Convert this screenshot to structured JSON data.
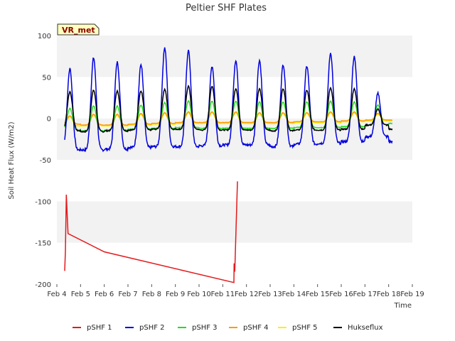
{
  "chart_data": {
    "type": "line",
    "title": "Peltier SHF Plates",
    "xlabel": "Time",
    "ylabel": "Soil Heat Flux (W/m2)",
    "ylim": [
      -200,
      100
    ],
    "xlim": [
      4.0,
      19.0
    ],
    "x_tick_labels": [
      "Feb 4",
      "Feb 5",
      "Feb 6",
      "Feb 7",
      "Feb 8",
      "Feb 9",
      "Feb 10",
      "Feb 11",
      "Feb 12",
      "Feb 13",
      "Feb 14",
      "Feb 15",
      "Feb 16",
      "Feb 17",
      "Feb 18",
      "Feb 19"
    ],
    "y_ticks": [
      -200,
      -150,
      -100,
      -50,
      0,
      50,
      100
    ],
    "grid": "horizontal bands",
    "legend_position": "bottom",
    "site_tag": "VR_met",
    "diurnal_peak_day_fraction": 0.55,
    "series": [
      {
        "name": "pSHF 1",
        "color": "#e31a1c",
        "x": [
          4.33,
          4.36,
          4.4,
          4.44,
          4.47,
          6.0,
          11.47,
          11.48,
          11.5,
          11.51,
          11.62
        ],
        "y": [
          -184,
          -160,
          -92,
          -120,
          -139,
          -161,
          -198,
          -175,
          -185,
          -183,
          -76
        ]
      },
      {
        "name": "pSHF 2",
        "color": "#0000dd",
        "baseline": -32,
        "amplitude_note": "daily peaks",
        "days": [
          4.33,
          5,
          6,
          7,
          8,
          9,
          10,
          11,
          12,
          13,
          14,
          15,
          16,
          17,
          18
        ],
        "peaks": [
          60,
          73,
          68,
          65,
          85,
          82,
          63,
          70,
          70,
          65,
          63,
          79,
          75,
          30,
          -28
        ],
        "troughs": [
          -38,
          -38,
          -37,
          -35,
          -34,
          -34,
          -33,
          -32,
          -32,
          -34,
          -31,
          -30,
          -28,
          -22,
          -28
        ]
      },
      {
        "name": "pSHF 3",
        "color": "#22dd22",
        "days": [
          4.33,
          5,
          6,
          7,
          8,
          9,
          10,
          11,
          12,
          13,
          14,
          15,
          16,
          17,
          18
        ],
        "peaks": [
          12,
          15,
          15,
          16,
          19,
          21,
          21,
          21,
          20,
          20,
          20,
          21,
          20,
          16,
          5
        ],
        "troughs": [
          -14,
          -15,
          -14,
          -13,
          -12,
          -11,
          -12,
          -12,
          -12,
          -12,
          -11,
          -11,
          -10,
          -8,
          -6
        ]
      },
      {
        "name": "pSHF 4",
        "color": "#ff9900",
        "days": [
          4.33,
          5,
          6,
          7,
          8,
          9,
          10,
          11,
          12,
          13,
          14,
          15,
          16,
          17,
          18
        ],
        "peaks": [
          3,
          5,
          5,
          6,
          7,
          8,
          8,
          8,
          7,
          7,
          7,
          8,
          8,
          6,
          2
        ],
        "troughs": [
          -7,
          -8,
          -8,
          -7,
          -6,
          -5,
          -5,
          -5,
          -5,
          -5,
          -4,
          -4,
          -3,
          -2,
          -2
        ]
      },
      {
        "name": "pSHF 5",
        "color": "#ffee00",
        "days": [
          4.33,
          5,
          6,
          7,
          8,
          9,
          10,
          11,
          12,
          13,
          14,
          15,
          16,
          17,
          18
        ],
        "peaks": [
          2,
          4,
          4,
          5,
          6,
          7,
          7,
          7,
          6,
          6,
          6,
          7,
          7,
          5,
          1
        ],
        "troughs": [
          -9,
          -9,
          -9,
          -8,
          -7,
          -6,
          -6,
          -6,
          -6,
          -6,
          -5,
          -5,
          -4,
          -3,
          -3
        ]
      },
      {
        "name": "Hukseflux",
        "color": "#000000",
        "days": [
          4.33,
          5,
          6,
          7,
          8,
          9,
          10,
          11,
          12,
          13,
          14,
          15,
          16,
          17,
          18
        ],
        "peaks": [
          32,
          34,
          33,
          33,
          35,
          39,
          39,
          36,
          36,
          36,
          34,
          37,
          36,
          11,
          -12
        ],
        "troughs": [
          -15,
          -16,
          -15,
          -14,
          -13,
          -13,
          -14,
          -14,
          -14,
          -15,
          -14,
          -14,
          -13,
          -8,
          -13
        ]
      }
    ]
  }
}
